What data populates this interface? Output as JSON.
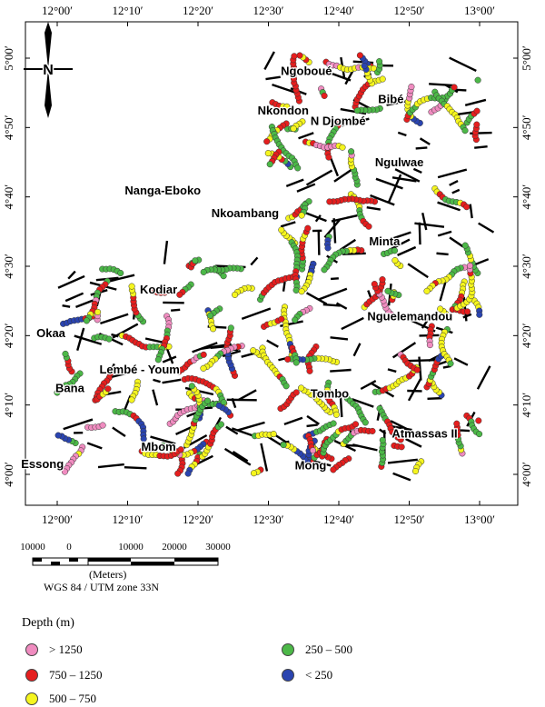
{
  "map": {
    "lon_labels": [
      "12°00′",
      "12°10′",
      "12°20′",
      "12°30′",
      "12°40′",
      "12°50′",
      "13°00′"
    ],
    "lat_labels": [
      "5°00′",
      "4°50′",
      "4°40′",
      "4°30′",
      "4°20′",
      "4°10′",
      "4°00′"
    ],
    "north_label": "N",
    "places": [
      {
        "name": "Ngoboué",
        "lon": 12.59,
        "lat": 4.96
      },
      {
        "name": "Nkondon",
        "lon": 12.535,
        "lat": 4.865
      },
      {
        "name": "N Djombé",
        "lon": 12.665,
        "lat": 4.84
      },
      {
        "name": "Bibé",
        "lon": 12.79,
        "lat": 4.892
      },
      {
        "name": "Ngulwae",
        "lon": 12.81,
        "lat": 4.74
      },
      {
        "name": "Nanga-Eboko",
        "lon": 12.25,
        "lat": 4.672
      },
      {
        "name": "Nkoambang",
        "lon": 12.445,
        "lat": 4.618
      },
      {
        "name": "Minta",
        "lon": 12.775,
        "lat": 4.55
      },
      {
        "name": "Kodiar",
        "lon": 12.24,
        "lat": 4.435
      },
      {
        "name": "Nguelemandou",
        "lon": 12.835,
        "lat": 4.37
      },
      {
        "name": "Okaa",
        "lon": 11.985,
        "lat": 4.33
      },
      {
        "name": "Lembé - Youm",
        "lon": 12.195,
        "lat": 4.242
      },
      {
        "name": "Bana",
        "lon": 12.03,
        "lat": 4.198
      },
      {
        "name": "Tombo",
        "lon": 12.645,
        "lat": 4.185
      },
      {
        "name": "Atmassas II",
        "lon": 12.87,
        "lat": 4.088
      },
      {
        "name": "Mbom",
        "lon": 12.24,
        "lat": 4.057
      },
      {
        "name": "Essong",
        "lon": 11.965,
        "lat": 4.015
      },
      {
        "name": "Mong",
        "lon": 12.6,
        "lat": 4.012
      }
    ],
    "colors": {
      "gt1250": "#f08cc0",
      "750_1250": "#e51e1e",
      "500_750": "#f5f51e",
      "250_500": "#4cb848",
      "lt250": "#2a44b0",
      "lineament": "#000000"
    }
  },
  "scalebar": {
    "labels": [
      "10000",
      "0",
      "10000",
      "20000",
      "30000"
    ],
    "units": "(Meters)",
    "projection": "WGS 84 / UTM zone 33N"
  },
  "legend": {
    "title": "Depth (m)",
    "items": [
      {
        "label": "> 1250",
        "color": "#f08cc0"
      },
      {
        "label": "750 – 1250",
        "color": "#e51e1e"
      },
      {
        "label": "500 – 750",
        "color": "#f5f51e"
      },
      {
        "label": "250 – 500",
        "color": "#4cb848"
      },
      {
        "label": "< 250",
        "color": "#2a44b0"
      }
    ]
  }
}
